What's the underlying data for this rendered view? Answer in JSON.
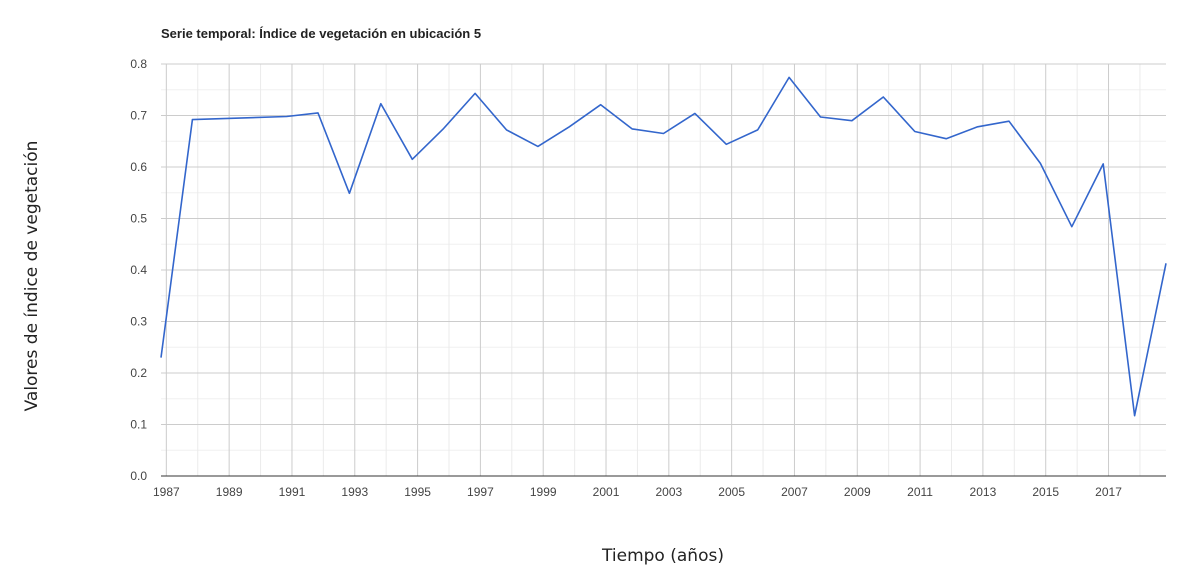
{
  "chart_data": {
    "type": "line",
    "title": "Serie temporal: Índice de vegetación en ubicación 5",
    "xlabel": "Tiempo (años)",
    "ylabel": "Valores de índice de vegetación",
    "xlim": [
      1986.83,
      2018.83
    ],
    "ylim": [
      0,
      0.8
    ],
    "x_ticks": [
      "1987",
      "1989",
      "1991",
      "1993",
      "1995",
      "1997",
      "1999",
      "2001",
      "2003",
      "2005",
      "2007",
      "2009",
      "2011",
      "2013",
      "2015",
      "2017"
    ],
    "y_ticks": [
      "0.0",
      "0.1",
      "0.2",
      "0.3",
      "0.4",
      "0.5",
      "0.6",
      "0.7",
      "0.8"
    ],
    "grid": true,
    "line_color": "#3366cc",
    "series": [
      {
        "x": [
          1986.83,
          1987.83,
          1990.83,
          1991.83,
          1992.83,
          1993.83,
          1994.83,
          1995.83,
          1996.83,
          1997.83,
          1998.83,
          1999.83,
          2000.83,
          2001.83,
          2002.83,
          2003.83,
          2004.83,
          2005.83,
          2006.83,
          2007.83,
          2008.83,
          2009.83,
          2010.83,
          2011.83,
          2012.83,
          2013.83,
          2014.83,
          2015.83,
          2016.83,
          2017.83,
          2018.83
        ],
        "values": [
          0.23,
          0.692,
          0.698,
          0.705,
          0.549,
          0.723,
          0.615,
          0.675,
          0.743,
          0.672,
          0.64,
          0.678,
          0.721,
          0.674,
          0.665,
          0.704,
          0.644,
          0.672,
          0.774,
          0.697,
          0.69,
          0.736,
          0.669,
          0.655,
          0.678,
          0.689,
          0.607,
          0.484,
          0.606,
          0.117,
          0.413
        ]
      }
    ]
  }
}
